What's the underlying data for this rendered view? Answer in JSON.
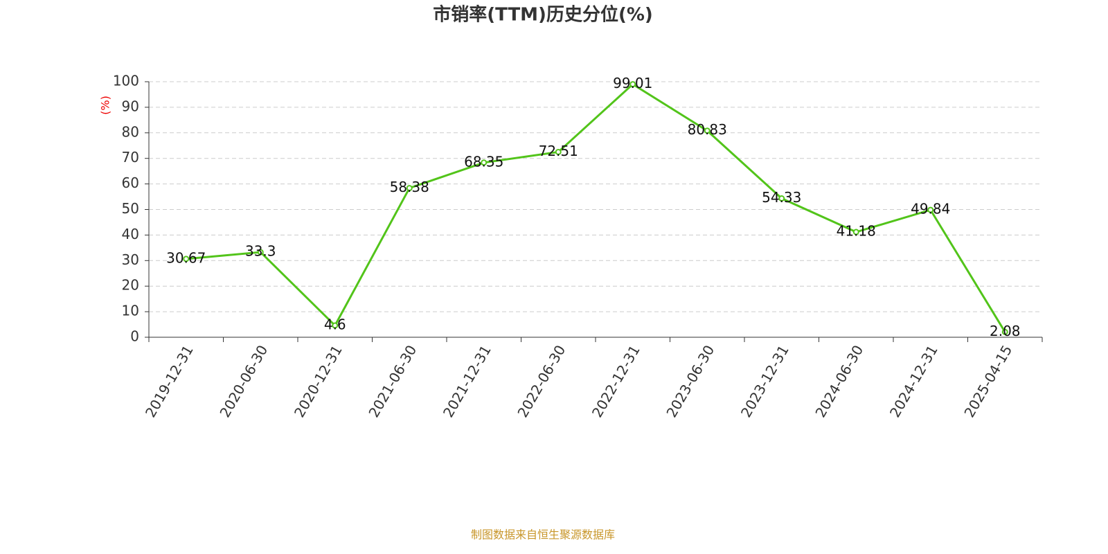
{
  "chart_data": {
    "type": "line",
    "title": "市销率(TTM)历史分位(%)",
    "ylabel": "(%)",
    "categories": [
      "2019-12-31",
      "2020-06-30",
      "2020-12-31",
      "2021-06-30",
      "2021-12-31",
      "2022-06-30",
      "2022-12-31",
      "2023-06-30",
      "2023-12-31",
      "2024-06-30",
      "2024-12-31",
      "2025-04-15"
    ],
    "series": [
      {
        "name": "市销率(TTM)历史分位",
        "color": "#52c41a",
        "values": [
          30.67,
          33.3,
          4.6,
          58.38,
          68.35,
          72.51,
          99.01,
          80.83,
          54.33,
          41.18,
          49.84,
          2.08
        ]
      }
    ],
    "ylim": [
      0,
      100
    ],
    "yticks": [
      0,
      10,
      20,
      30,
      40,
      50,
      60,
      70,
      80,
      90,
      100
    ],
    "grid": true,
    "footer": "制图数据来自恒生聚源数据库"
  }
}
